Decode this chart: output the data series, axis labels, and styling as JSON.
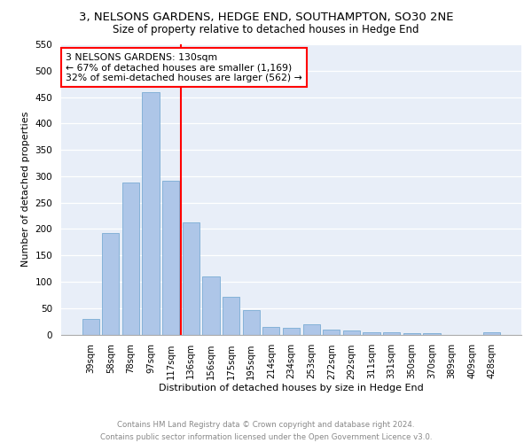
{
  "title": "3, NELSONS GARDENS, HEDGE END, SOUTHAMPTON, SO30 2NE",
  "subtitle": "Size of property relative to detached houses in Hedge End",
  "xlabel": "Distribution of detached houses by size in Hedge End",
  "ylabel": "Number of detached properties",
  "categories": [
    "39sqm",
    "58sqm",
    "78sqm",
    "97sqm",
    "117sqm",
    "136sqm",
    "156sqm",
    "175sqm",
    "195sqm",
    "214sqm",
    "234sqm",
    "253sqm",
    "272sqm",
    "292sqm",
    "311sqm",
    "331sqm",
    "350sqm",
    "370sqm",
    "389sqm",
    "409sqm",
    "428sqm"
  ],
  "values": [
    30,
    192,
    288,
    460,
    292,
    213,
    110,
    72,
    47,
    15,
    13,
    20,
    10,
    8,
    5,
    4,
    3,
    3,
    0,
    0,
    5
  ],
  "bar_color": "#aec6e8",
  "bar_edge_color": "#7aacd4",
  "vline_color": "red",
  "vline_x": 4.5,
  "annotation_text": "3 NELSONS GARDENS: 130sqm\n← 67% of detached houses are smaller (1,169)\n32% of semi-detached houses are larger (562) →",
  "annotation_box_color": "white",
  "annotation_box_edge": "red",
  "ylim": [
    0,
    550
  ],
  "yticks": [
    0,
    50,
    100,
    150,
    200,
    250,
    300,
    350,
    400,
    450,
    500,
    550
  ],
  "footer_line1": "Contains HM Land Registry data © Crown copyright and database right 2024.",
  "footer_line2": "Contains public sector information licensed under the Open Government Licence v3.0.",
  "bg_color": "#e8eef8",
  "fig_bg_color": "#ffffff"
}
